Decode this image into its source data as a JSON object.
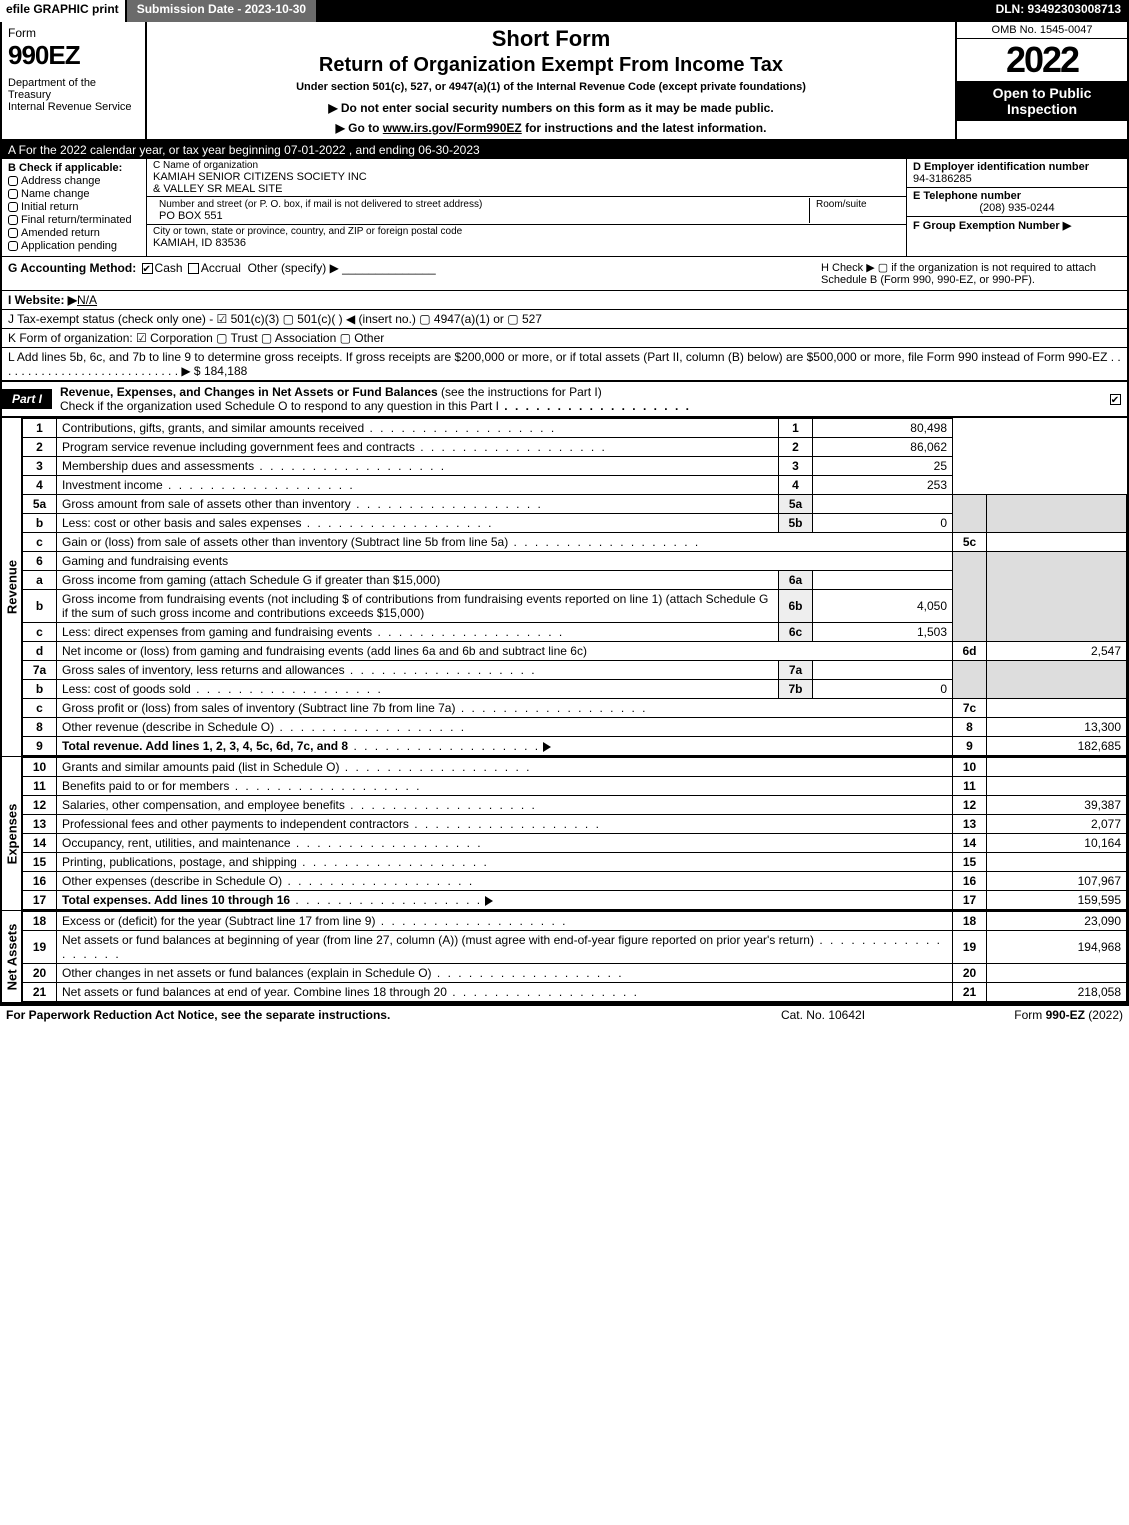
{
  "topbar": {
    "efile": "efile GRAPHIC print",
    "submission": "Submission Date - 2023-10-30",
    "dln": "DLN: 93492303008713"
  },
  "header": {
    "form_word": "Form",
    "form_number": "990EZ",
    "department": "Department of the Treasury\nInternal Revenue Service",
    "short_form": "Short Form",
    "return_title": "Return of Organization Exempt From Income Tax",
    "under_section": "Under section 501(c), 527, or 4947(a)(1) of the Internal Revenue Code (except private foundations)",
    "warn": "▶ Do not enter social security numbers on this form as it may be made public.",
    "goto_pre": "▶ Go to ",
    "goto_link": "www.irs.gov/Form990EZ",
    "goto_post": " for instructions and the latest information.",
    "omb": "OMB No. 1545-0047",
    "year": "2022",
    "open": "Open to Public Inspection"
  },
  "A": "A  For the 2022 calendar year, or tax year beginning 07-01-2022 , and ending 06-30-2023",
  "B": {
    "title": "B  Check if applicable:",
    "opts": [
      "Address change",
      "Name change",
      "Initial return",
      "Final return/terminated",
      "Amended return",
      "Application pending"
    ]
  },
  "C": {
    "name_lbl": "C Name of organization",
    "name": "KAMIAH SENIOR CITIZENS SOCIETY INC\n& VALLEY SR MEAL SITE",
    "street_lbl": "Number and street (or P. O. box, if mail is not delivered to street address)",
    "street": "PO BOX 551",
    "room_lbl": "Room/suite",
    "city_lbl": "City or town, state or province, country, and ZIP or foreign postal code",
    "city": "KAMIAH, ID  83536"
  },
  "D": {
    "ein_lbl": "D Employer identification number",
    "ein": "94-3186285",
    "tel_lbl": "E Telephone number",
    "tel": "(208) 935-0244",
    "grp_lbl": "F Group Exemption Number   ▶"
  },
  "G": {
    "lbl": "G Accounting Method:",
    "cash": "Cash",
    "accrual": "Accrual",
    "other": "Other (specify) ▶"
  },
  "H": "H   Check ▶  ▢  if the organization is not required to attach Schedule B (Form 990, 990-EZ, or 990-PF).",
  "I": {
    "lbl": "I Website: ▶",
    "val": "N/A"
  },
  "J": "J Tax-exempt status (check only one) -  ☑ 501(c)(3)  ▢ 501(c)(  ) ◀ (insert no.)  ▢ 4947(a)(1) or  ▢ 527",
  "K": "K Form of organization:   ☑ Corporation   ▢ Trust   ▢ Association   ▢ Other",
  "L": "L Add lines 5b, 6c, and 7b to line 9 to determine gross receipts. If gross receipts are $200,000 or more, or if total assets (Part II, column (B) below) are $500,000 or more, file Form 990 instead of Form 990-EZ  .  .  .  .  .  .  .  .  .  .  .  .  .  .  .  .  .  .  .  .  .  .  .  .  .  .  .  .  ▶ $ 184,188",
  "partI": {
    "tag": "Part I",
    "title": "Revenue, Expenses, and Changes in Net Assets or Fund Balances ",
    "subtitle": "(see the instructions for Part I)",
    "check": "Check if the organization used Schedule O to respond to any question in this Part I"
  },
  "section_labels": {
    "revenue": "Revenue",
    "expenses": "Expenses",
    "netassets": "Net Assets"
  },
  "lines": {
    "1": {
      "n": "1",
      "d": "Contributions, gifts, grants, and similar amounts received",
      "rl": "1",
      "a": "80,498"
    },
    "2": {
      "n": "2",
      "d": "Program service revenue including government fees and contracts",
      "rl": "2",
      "a": "86,062"
    },
    "3": {
      "n": "3",
      "d": "Membership dues and assessments",
      "rl": "3",
      "a": "25"
    },
    "4": {
      "n": "4",
      "d": "Investment income",
      "rl": "4",
      "a": "253"
    },
    "5a": {
      "n": "5a",
      "d": "Gross amount from sale of assets other than inventory",
      "m": "5a",
      "mv": ""
    },
    "5b": {
      "n": "b",
      "d": "Less: cost or other basis and sales expenses",
      "m": "5b",
      "mv": "0"
    },
    "5c": {
      "n": "c",
      "d": "Gain or (loss) from sale of assets other than inventory (Subtract line 5b from line 5a)",
      "rl": "5c",
      "a": ""
    },
    "6": {
      "n": "6",
      "d": "Gaming and fundraising events"
    },
    "6a": {
      "n": "a",
      "d": "Gross income from gaming (attach Schedule G if greater than $15,000)",
      "m": "6a",
      "mv": ""
    },
    "6b": {
      "n": "b",
      "d": "Gross income from fundraising events (not including $                   of contributions from fundraising events reported on line 1) (attach Schedule G if the sum of such gross income and contributions exceeds $15,000)",
      "m": "6b",
      "mv": "4,050"
    },
    "6c": {
      "n": "c",
      "d": "Less: direct expenses from gaming and fundraising events",
      "m": "6c",
      "mv": "1,503"
    },
    "6d": {
      "n": "d",
      "d": "Net income or (loss) from gaming and fundraising events (add lines 6a and 6b and subtract line 6c)",
      "rl": "6d",
      "a": "2,547"
    },
    "7a": {
      "n": "7a",
      "d": "Gross sales of inventory, less returns and allowances",
      "m": "7a",
      "mv": ""
    },
    "7b": {
      "n": "b",
      "d": "Less: cost of goods sold",
      "m": "7b",
      "mv": "0"
    },
    "7c": {
      "n": "c",
      "d": "Gross profit or (loss) from sales of inventory (Subtract line 7b from line 7a)",
      "rl": "7c",
      "a": ""
    },
    "8": {
      "n": "8",
      "d": "Other revenue (describe in Schedule O)",
      "rl": "8",
      "a": "13,300"
    },
    "9": {
      "n": "9",
      "d": "Total revenue. Add lines 1, 2, 3, 4, 5c, 6d, 7c, and 8",
      "rl": "9",
      "a": "182,685",
      "bold": true
    },
    "10": {
      "n": "10",
      "d": "Grants and similar amounts paid (list in Schedule O)",
      "rl": "10",
      "a": ""
    },
    "11": {
      "n": "11",
      "d": "Benefits paid to or for members",
      "rl": "11",
      "a": ""
    },
    "12": {
      "n": "12",
      "d": "Salaries, other compensation, and employee benefits",
      "rl": "12",
      "a": "39,387"
    },
    "13": {
      "n": "13",
      "d": "Professional fees and other payments to independent contractors",
      "rl": "13",
      "a": "2,077"
    },
    "14": {
      "n": "14",
      "d": "Occupancy, rent, utilities, and maintenance",
      "rl": "14",
      "a": "10,164"
    },
    "15": {
      "n": "15",
      "d": "Printing, publications, postage, and shipping",
      "rl": "15",
      "a": ""
    },
    "16": {
      "n": "16",
      "d": "Other expenses (describe in Schedule O)",
      "rl": "16",
      "a": "107,967"
    },
    "17": {
      "n": "17",
      "d": "Total expenses. Add lines 10 through 16",
      "rl": "17",
      "a": "159,595",
      "bold": true
    },
    "18": {
      "n": "18",
      "d": "Excess or (deficit) for the year (Subtract line 17 from line 9)",
      "rl": "18",
      "a": "23,090"
    },
    "19": {
      "n": "19",
      "d": "Net assets or fund balances at beginning of year (from line 27, column (A)) (must agree with end-of-year figure reported on prior year's return)",
      "rl": "19",
      "a": "194,968"
    },
    "20": {
      "n": "20",
      "d": "Other changes in net assets or fund balances (explain in Schedule O)",
      "rl": "20",
      "a": ""
    },
    "21": {
      "n": "21",
      "d": "Net assets or fund balances at end of year. Combine lines 18 through 20",
      "rl": "21",
      "a": "218,058"
    }
  },
  "footer": {
    "left": "For Paperwork Reduction Act Notice, see the separate instructions.",
    "center": "Cat. No. 10642I",
    "right_pre": "Form ",
    "right_form": "990-EZ",
    "right_post": " (2022)"
  },
  "colors": {
    "black": "#000000",
    "grey": "#dddddd",
    "bar": "#6b6b6b"
  }
}
